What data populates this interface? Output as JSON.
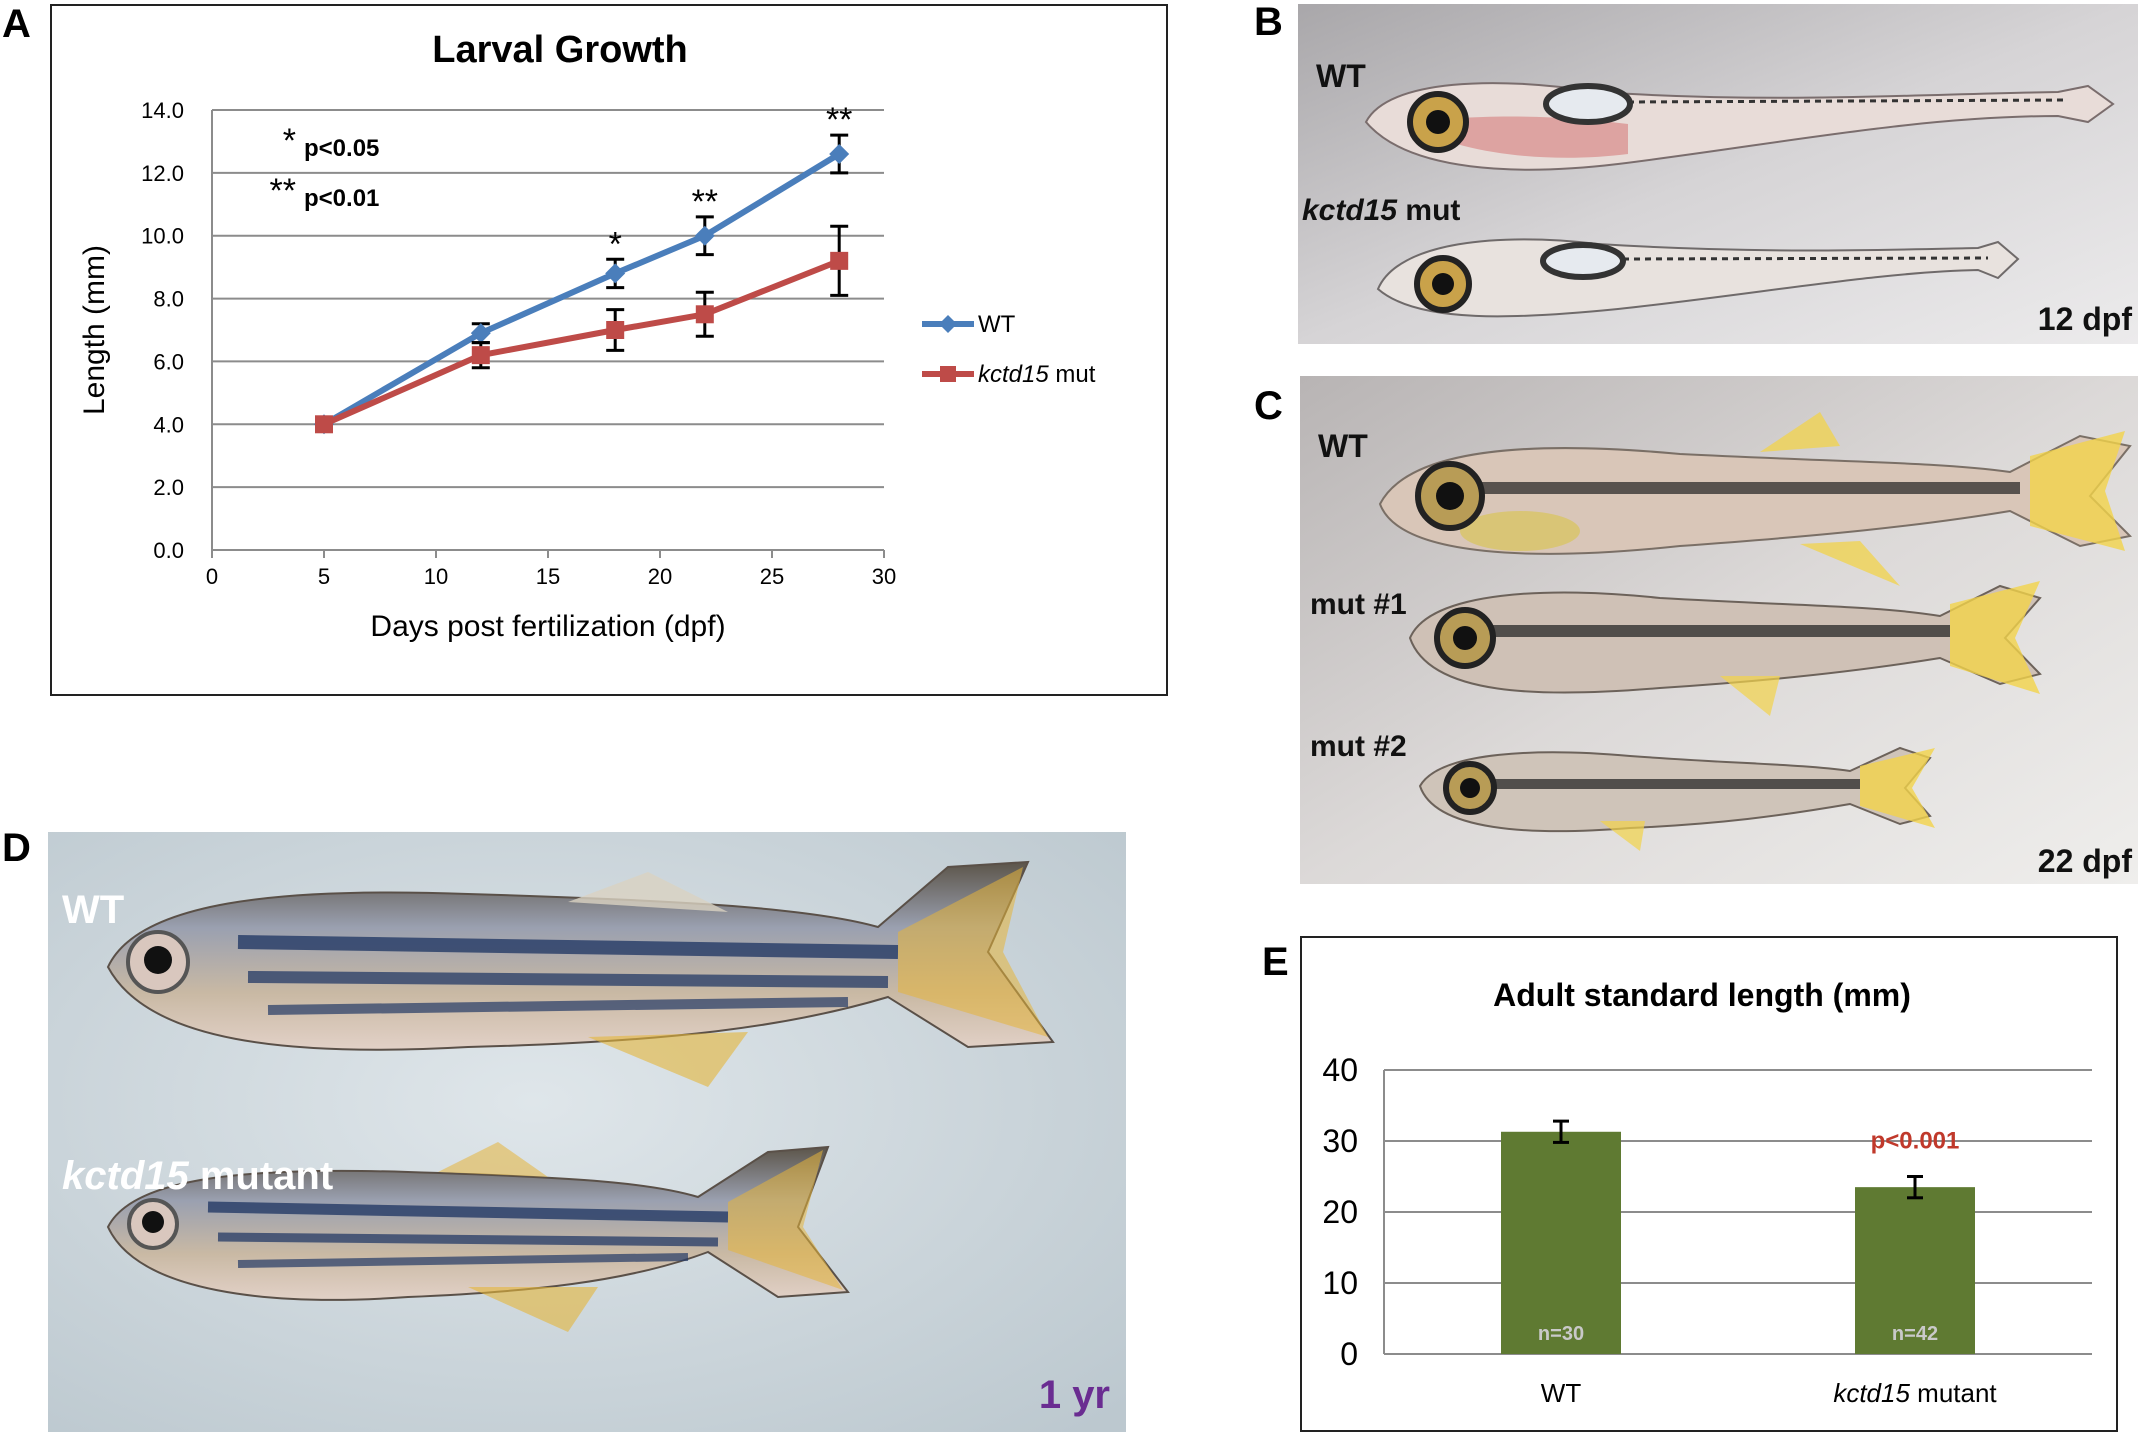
{
  "panels": {
    "A": "A",
    "B": "B",
    "C": "C",
    "D": "D",
    "E": "E"
  },
  "chart_data": [
    {
      "id": "A",
      "type": "line",
      "title": "Larval Growth",
      "xlabel": "Days post fertilization (dpf)",
      "ylabel": "Length (mm)",
      "xlim": [
        0,
        30
      ],
      "ylim": [
        0,
        14
      ],
      "xticks": [
        "0",
        "5",
        "10",
        "15",
        "20",
        "25",
        "30"
      ],
      "yticks": [
        "0.0",
        "2.0",
        "4.0",
        "6.0",
        "8.0",
        "10.0",
        "12.0",
        "14.0"
      ],
      "grid": "horizontal",
      "legend_position": "right",
      "x": [
        5,
        12,
        18,
        22,
        28
      ],
      "series": [
        {
          "name": "WT",
          "values": [
            4.0,
            6.9,
            8.8,
            10.0,
            12.6
          ],
          "errors": [
            0.1,
            0.3,
            0.45,
            0.6,
            0.6
          ],
          "color": "#4a7ebb",
          "marker": "diamond"
        },
        {
          "name_italic": "kctd15",
          "name_rest": " mut",
          "values": [
            4.0,
            6.2,
            7.0,
            7.5,
            9.2
          ],
          "errors": [
            0.1,
            0.4,
            0.65,
            0.7,
            1.1
          ],
          "color": "#be4b48",
          "marker": "square"
        }
      ],
      "significance": [
        {
          "x": 18,
          "label": "*"
        },
        {
          "x": 22,
          "label": "**"
        },
        {
          "x": 28,
          "label": "**"
        }
      ],
      "key": [
        {
          "stars": "*",
          "text": "p<0.05"
        },
        {
          "stars": "**",
          "text": "p<0.01"
        }
      ]
    },
    {
      "id": "E",
      "type": "bar",
      "title": "Adult standard length (mm)",
      "categories": [
        "WT",
        "kctd15 mutant"
      ],
      "category_parts": [
        {
          "italic": "",
          "rest": "WT"
        },
        {
          "italic": "kctd15",
          "rest": " mutant"
        }
      ],
      "values": [
        31.3,
        23.5
      ],
      "errors": [
        1.5,
        1.5
      ],
      "n_labels": [
        "n=30",
        "n=42"
      ],
      "annotation": "p<0.001",
      "annotation_color": "#c0392b",
      "bar_color": "#5f7a32",
      "ylim": [
        0,
        40
      ],
      "yticks": [
        "0",
        "10",
        "20",
        "30",
        "40"
      ],
      "grid": "horizontal"
    }
  ],
  "photos": {
    "B": {
      "wt": "WT",
      "mut_italic": "kctd15",
      "mut_rest": " mut",
      "stage": "12 dpf"
    },
    "C": {
      "wt": "WT",
      "mut1": "mut #1",
      "mut2": "mut #2",
      "stage": "22 dpf"
    },
    "D": {
      "wt": "WT",
      "mut_italic": "kctd15",
      "mut_rest": " mutant",
      "stage": "1 yr",
      "stage_color": "#6a2c91"
    }
  }
}
